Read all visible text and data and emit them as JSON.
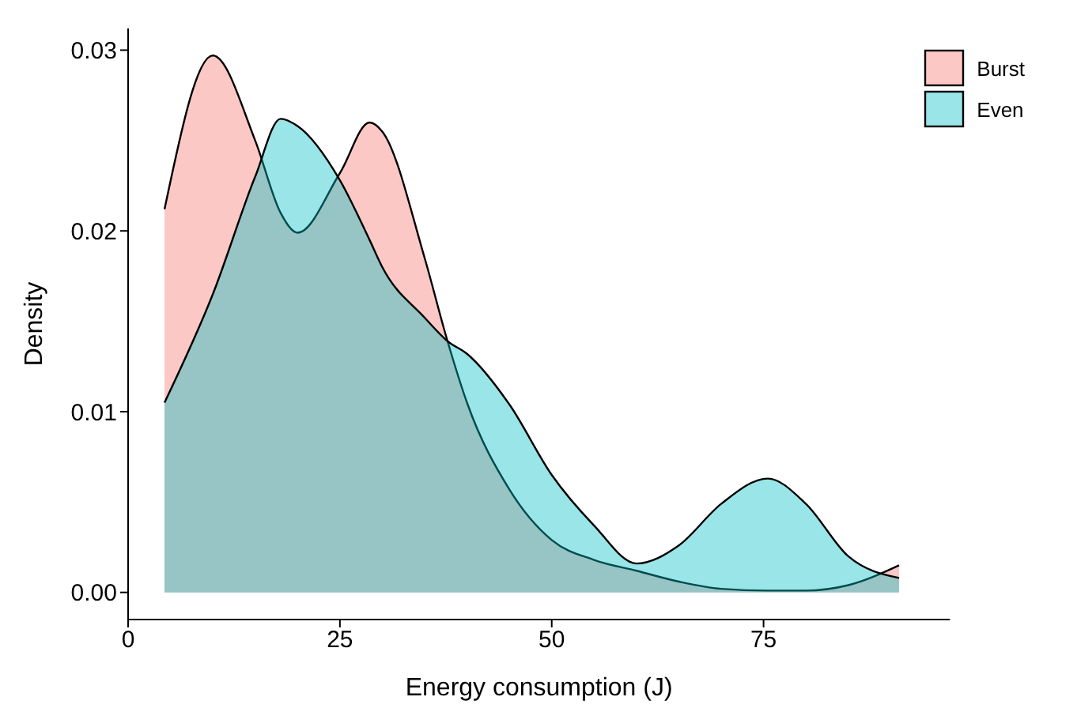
{
  "chart_data": {
    "type": "area",
    "xlabel": "Energy consumption (J)",
    "ylabel": "Density",
    "x": [
      4.3,
      10,
      15,
      18,
      20,
      25,
      28.5,
      30,
      35,
      37.7,
      40,
      45,
      50,
      55,
      60,
      65,
      70,
      75.5,
      80,
      85,
      91
    ],
    "series": [
      {
        "name": "Burst",
        "color": "#f8766d",
        "values": [
          0.0212,
          0.0297,
          0.025,
          0.021,
          0.0199,
          0.0232,
          0.026,
          0.0255,
          0.0185,
          0.0139,
          0.0105,
          0.0057,
          0.0029,
          0.0018,
          0.0012,
          0.0006,
          0.0002,
          0.0001,
          0.0001,
          0.0004,
          0.0015
        ]
      },
      {
        "name": "Even",
        "color": "#00bfc4",
        "values": [
          0.0105,
          0.0165,
          0.023,
          0.0262,
          0.0258,
          0.0228,
          0.0195,
          0.018,
          0.0152,
          0.0139,
          0.0132,
          0.0104,
          0.0065,
          0.0037,
          0.0016,
          0.0026,
          0.0049,
          0.0063,
          0.0049,
          0.002,
          0.0008
        ]
      }
    ],
    "xlim": [
      0,
      97
    ],
    "xticks": [
      0,
      25,
      50,
      75
    ],
    "ylim": [
      -0.0015,
      0.0312
    ],
    "yticks": [
      {
        "value": 0,
        "label": "0.00"
      },
      {
        "value": 0.01,
        "label": "0.01"
      },
      {
        "value": 0.02,
        "label": "0.02"
      },
      {
        "value": 0.03,
        "label": "0.03"
      }
    ],
    "grid": false,
    "legend": "top right"
  }
}
